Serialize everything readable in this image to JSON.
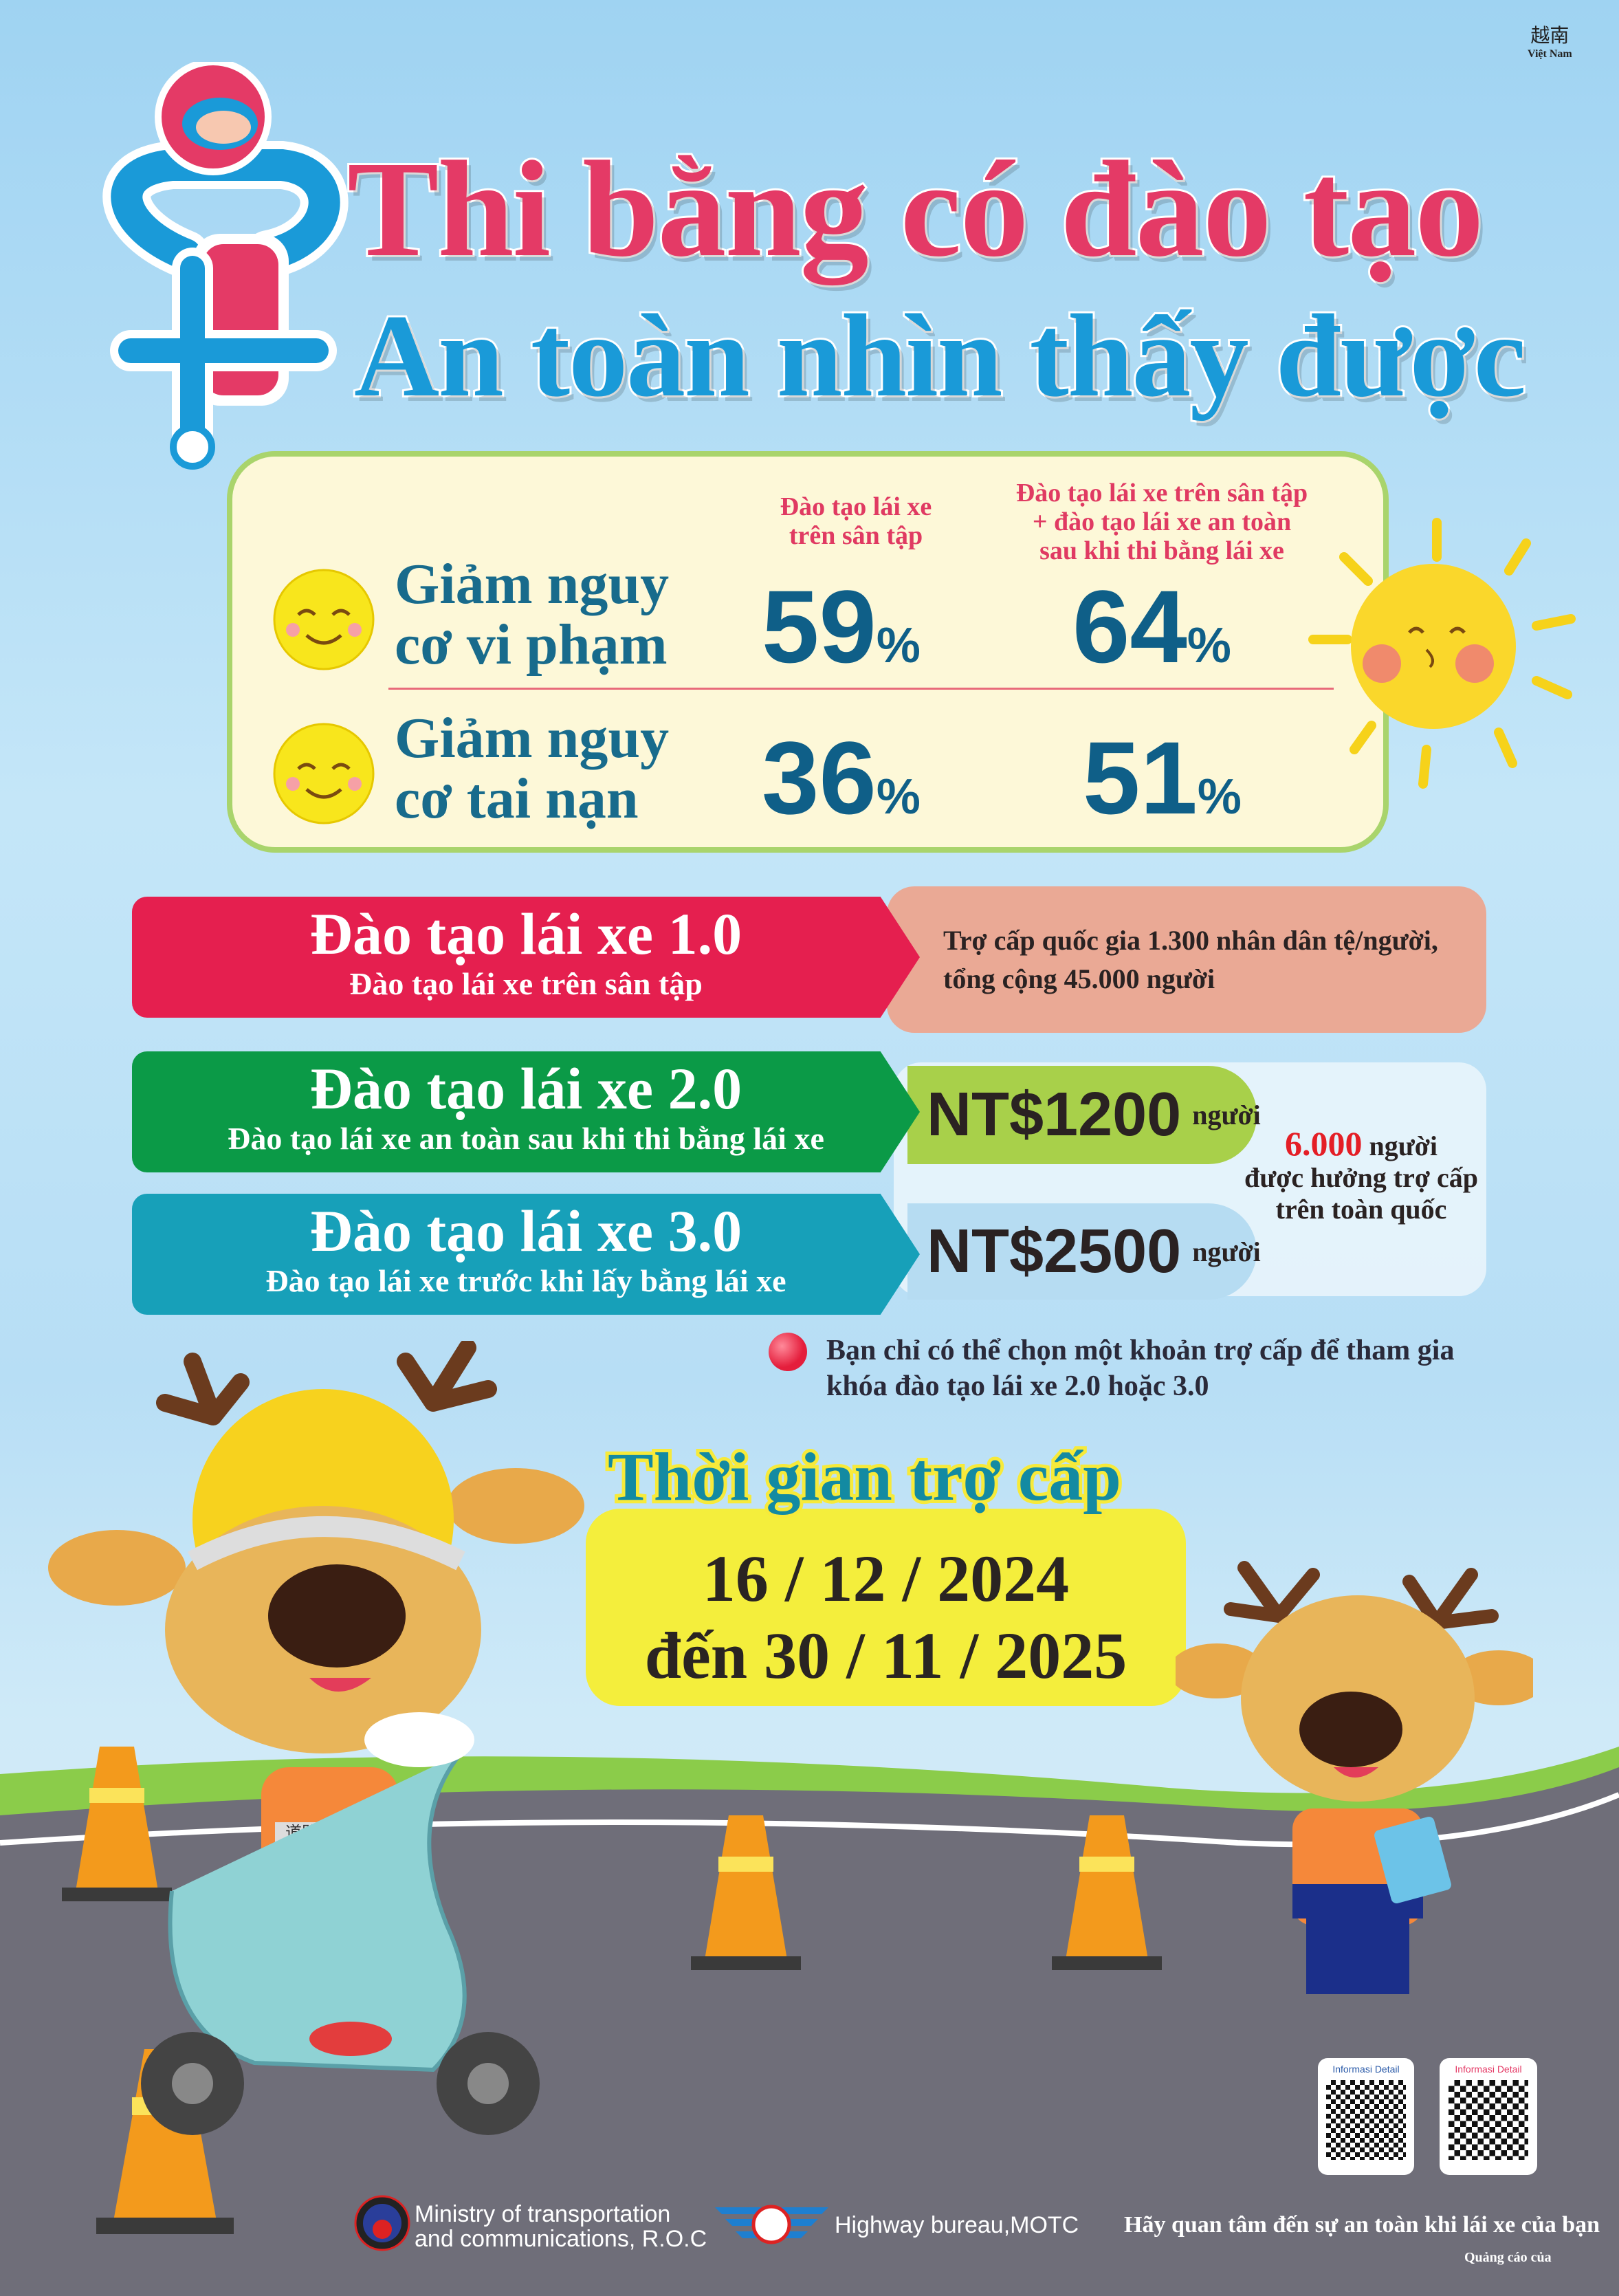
{
  "corner": {
    "chinese": "越南",
    "country": "Việt Nam"
  },
  "title": {
    "line1": "Thi bằng có đào tạo",
    "line2": "An toàn nhìn thấy được"
  },
  "stats": {
    "col_headers": [
      "Đào tạo lái xe\ntrên sân tập",
      "Đào tạo lái xe trên sân tập\n+ đào tạo lái xe an toàn\nsau khi thi bằng lái xe"
    ],
    "rows": [
      {
        "label_line1": "Giảm nguy",
        "label_line2": "cơ vi phạm",
        "value1": "59",
        "value2": "64",
        "unit": "%"
      },
      {
        "label_line1": "Giảm nguy",
        "label_line2": "cơ tai nạn",
        "value1": "36",
        "value2": "51",
        "unit": "%"
      }
    ]
  },
  "programs": [
    {
      "title": "Đào tạo lái xe 1.0",
      "subtitle": "Đào tạo lái xe trên sân tập",
      "subsidy_text": "Trợ cấp quốc gia 1.300 nhân dân tệ/người,\ntổng cộng 45.000 người",
      "color": "#e51f4f"
    },
    {
      "title": "Đào tạo lái xe 2.0",
      "subtitle": "Đào tạo lái xe an toàn sau khi thi bằng lái xe",
      "amount": "NT$1200",
      "per": "người",
      "color": "#0b9a47"
    },
    {
      "title": "Đào tạo lái xe 3.0",
      "subtitle": "Đào tạo lái xe trước khi lấy bằng lái xe",
      "amount": "NT$2500",
      "per": "người",
      "color": "#17a0b9"
    }
  ],
  "quota": {
    "number": "6.000",
    "unit": "người",
    "line2": "được hưởng trợ cấp",
    "line3": "trên toàn quốc"
  },
  "note": "Bạn chỉ có thể chọn một khoản trợ cấp để tham gia khóa đào tạo lái xe 2.0 hoặc 3.0",
  "period": {
    "heading": "Thời gian trợ cấp",
    "start": "16 / 12 / 2024",
    "end": "đến 30 / 11 / 2025"
  },
  "vest_text": "道路安全訓練",
  "qr": [
    {
      "label": "Informasi Detail"
    },
    {
      "label": "Informasi Detail"
    }
  ],
  "footer": {
    "ministry_line1": "Ministry of transportation",
    "ministry_line2": "and communications, R.O.C",
    "highway": "Highway bureau,MOTC",
    "slogan": "Hãy quan tâm đến sự an toàn khi lái xe của bạn",
    "ad_by": "Quảng cáo của"
  },
  "colors": {
    "title_pink": "#e43a66",
    "title_blue": "#1a9ad8",
    "panel": "#fdf8d8",
    "road": "#6f6e79",
    "date_box": "#f4ee3c"
  }
}
